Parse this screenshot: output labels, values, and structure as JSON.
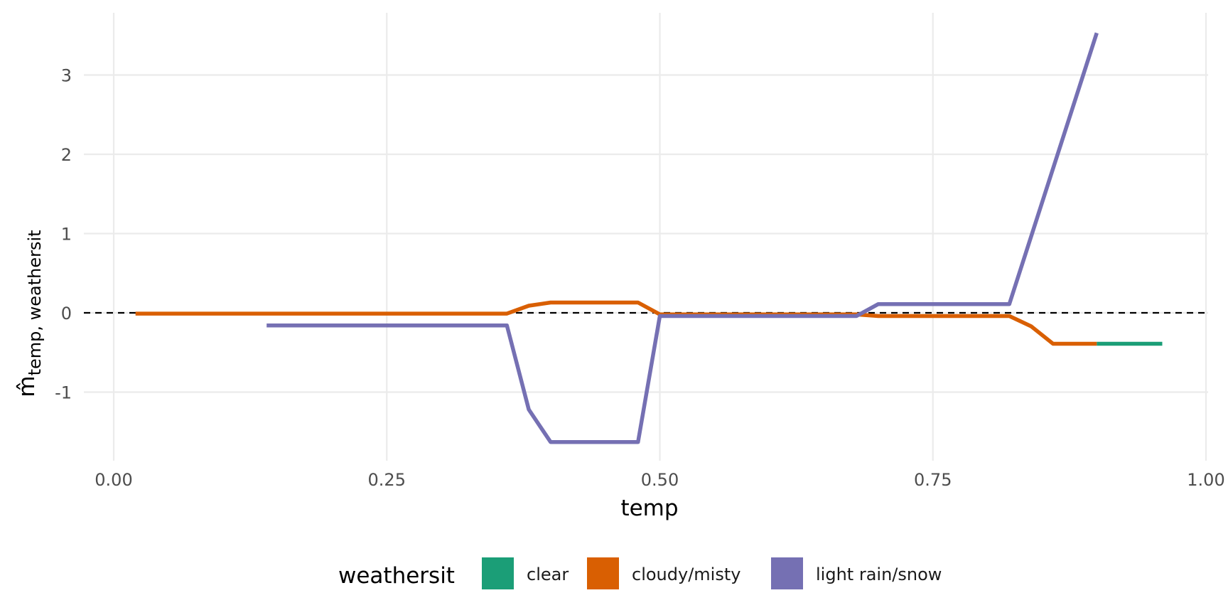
{
  "chart_data": {
    "type": "line",
    "xlabel": "temp",
    "ylabel": {
      "main": "m̂",
      "subscript": "temp, weathersit"
    },
    "xlim": [
      0.0,
      1.0
    ],
    "ylim": [
      -1.85,
      3.8
    ],
    "x_ticks": [
      {
        "value": 0.0,
        "label": "0.00"
      },
      {
        "value": 0.25,
        "label": "0.25"
      },
      {
        "value": 0.5,
        "label": "0.50"
      },
      {
        "value": 0.75,
        "label": "0.75"
      },
      {
        "value": 1.0,
        "label": "1.00"
      }
    ],
    "y_ticks": [
      {
        "value": -1,
        "label": "-1"
      },
      {
        "value": 0,
        "label": "0"
      },
      {
        "value": 1,
        "label": "1"
      },
      {
        "value": 2,
        "label": "2"
      },
      {
        "value": 3,
        "label": "3"
      }
    ],
    "grid": true,
    "reference_line": {
      "y": 0,
      "style": "dashed",
      "color": "#000000"
    },
    "legend": {
      "title": "weathersit",
      "position": "bottom"
    },
    "series": [
      {
        "name": "clear",
        "color": "#1B9E77",
        "points": [
          [
            0.9,
            -0.39
          ],
          [
            0.96,
            -0.39
          ]
        ]
      },
      {
        "name": "cloudy/misty",
        "color": "#D95F02",
        "points": [
          [
            0.02,
            -0.01
          ],
          [
            0.36,
            -0.01
          ],
          [
            0.38,
            0.09
          ],
          [
            0.4,
            0.13
          ],
          [
            0.48,
            0.13
          ],
          [
            0.5,
            -0.02
          ],
          [
            0.68,
            -0.02
          ],
          [
            0.7,
            -0.04
          ],
          [
            0.82,
            -0.04
          ],
          [
            0.84,
            -0.17
          ],
          [
            0.86,
            -0.39
          ],
          [
            0.9,
            -0.39
          ]
        ]
      },
      {
        "name": "light rain/snow",
        "color": "#7570B3",
        "points": [
          [
            0.14,
            -0.16
          ],
          [
            0.36,
            -0.16
          ],
          [
            0.38,
            -1.22
          ],
          [
            0.4,
            -1.63
          ],
          [
            0.48,
            -1.63
          ],
          [
            0.5,
            -0.04
          ],
          [
            0.68,
            -0.04
          ],
          [
            0.7,
            0.11
          ],
          [
            0.82,
            0.11
          ],
          [
            0.9,
            3.53
          ]
        ]
      }
    ]
  }
}
